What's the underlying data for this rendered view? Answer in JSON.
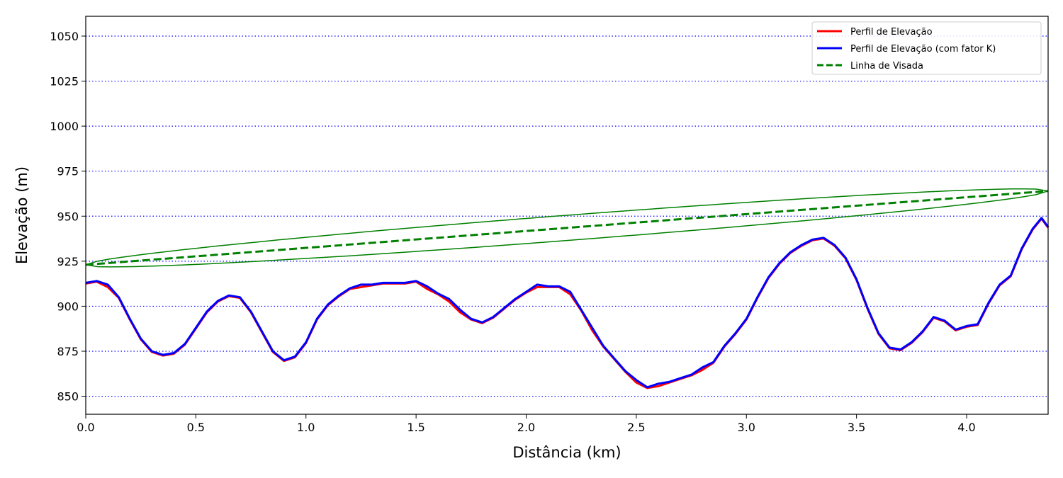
{
  "chart_data": {
    "type": "line",
    "title": "",
    "xlabel": "Distância (km)",
    "ylabel": "Elevação (m)",
    "xlim": [
      0.0,
      4.37
    ],
    "ylim": [
      840,
      1061
    ],
    "xticks": [
      0.0,
      0.5,
      1.0,
      1.5,
      2.0,
      2.5,
      3.0,
      3.5,
      4.0
    ],
    "xtick_labels": [
      "0.0",
      "0.5",
      "1.0",
      "1.5",
      "2.0",
      "2.5",
      "3.0",
      "3.5",
      "4.0"
    ],
    "yticks": [
      850,
      875,
      900,
      925,
      950,
      975,
      1000,
      1025,
      1050
    ],
    "ytick_labels": [
      "850",
      "875",
      "900",
      "925",
      "950",
      "975",
      "1000",
      "1025",
      "1050"
    ],
    "grid": "horizontal dotted blue",
    "legend_position": "top-right",
    "x": [
      0.0,
      0.05,
      0.1,
      0.15,
      0.2,
      0.25,
      0.3,
      0.35,
      0.4,
      0.45,
      0.5,
      0.55,
      0.6,
      0.65,
      0.7,
      0.75,
      0.8,
      0.85,
      0.9,
      0.95,
      1.0,
      1.05,
      1.1,
      1.15,
      1.2,
      1.25,
      1.3,
      1.35,
      1.4,
      1.45,
      1.5,
      1.55,
      1.6,
      1.65,
      1.7,
      1.75,
      1.8,
      1.85,
      1.9,
      1.95,
      2.0,
      2.05,
      2.1,
      2.15,
      2.2,
      2.25,
      2.3,
      2.35,
      2.4,
      2.45,
      2.5,
      2.55,
      2.6,
      2.65,
      2.7,
      2.75,
      2.8,
      2.85,
      2.9,
      2.95,
      3.0,
      3.05,
      3.1,
      3.15,
      3.2,
      3.25,
      3.3,
      3.35,
      3.4,
      3.45,
      3.5,
      3.55,
      3.6,
      3.65,
      3.7,
      3.75,
      3.8,
      3.85,
      3.9,
      3.95,
      4.0,
      4.05,
      4.1,
      4.15,
      4.2,
      4.25,
      4.3,
      4.34,
      4.37
    ],
    "series": [
      {
        "name": "Perfil de Elevação",
        "color": "#ff0000",
        "style": "solid",
        "values": [
          913,
          914,
          911,
          905,
          893,
          882,
          875,
          873,
          874,
          879,
          888,
          897,
          903,
          906,
          905,
          897,
          886,
          875,
          870,
          872,
          880,
          893,
          901,
          906,
          910,
          911,
          912,
          913,
          913,
          913,
          914,
          910,
          907,
          903,
          897,
          893,
          891,
          894,
          899,
          904,
          908,
          911,
          911,
          911,
          907,
          898,
          887,
          878,
          871,
          864,
          858,
          855,
          856,
          858,
          860,
          862,
          865,
          869,
          878,
          885,
          893,
          905,
          916,
          924,
          930,
          934,
          937,
          938,
          934,
          927,
          915,
          899,
          885,
          877,
          876,
          880,
          886,
          894,
          892,
          887,
          889,
          890,
          902,
          912,
          917,
          932,
          943,
          949,
          944
        ]
      },
      {
        "name": "Perfil de Elevação (com fator K)",
        "color": "#0000ff",
        "style": "solid",
        "values": [
          913,
          914,
          912,
          905,
          893,
          882,
          875,
          873,
          874,
          879,
          888,
          897,
          903,
          906,
          905,
          897,
          886,
          875,
          870,
          872,
          880,
          893,
          901,
          906,
          910,
          912,
          912,
          913,
          913,
          913,
          914,
          911,
          907,
          904,
          898,
          893,
          891,
          894,
          899,
          904,
          908,
          912,
          911,
          911,
          908,
          898,
          888,
          878,
          871,
          864,
          859,
          855,
          857,
          858,
          860,
          862,
          866,
          869,
          878,
          885,
          893,
          905,
          916,
          924,
          930,
          934,
          937,
          938,
          934,
          927,
          915,
          899,
          885,
          877,
          876,
          880,
          886,
          894,
          892,
          887,
          889,
          890,
          902,
          912,
          917,
          932,
          943,
          949,
          944
        ]
      },
      {
        "name": "Linha de Visada",
        "color": "#008000",
        "style": "dashed",
        "x": [
          0.0,
          4.37
        ],
        "values": [
          923,
          964
        ]
      }
    ],
    "fresnel_zone": {
      "color": "#008000",
      "start": [
        0.0,
        923
      ],
      "end": [
        4.37,
        964
      ],
      "max_half_height": 7
    }
  }
}
